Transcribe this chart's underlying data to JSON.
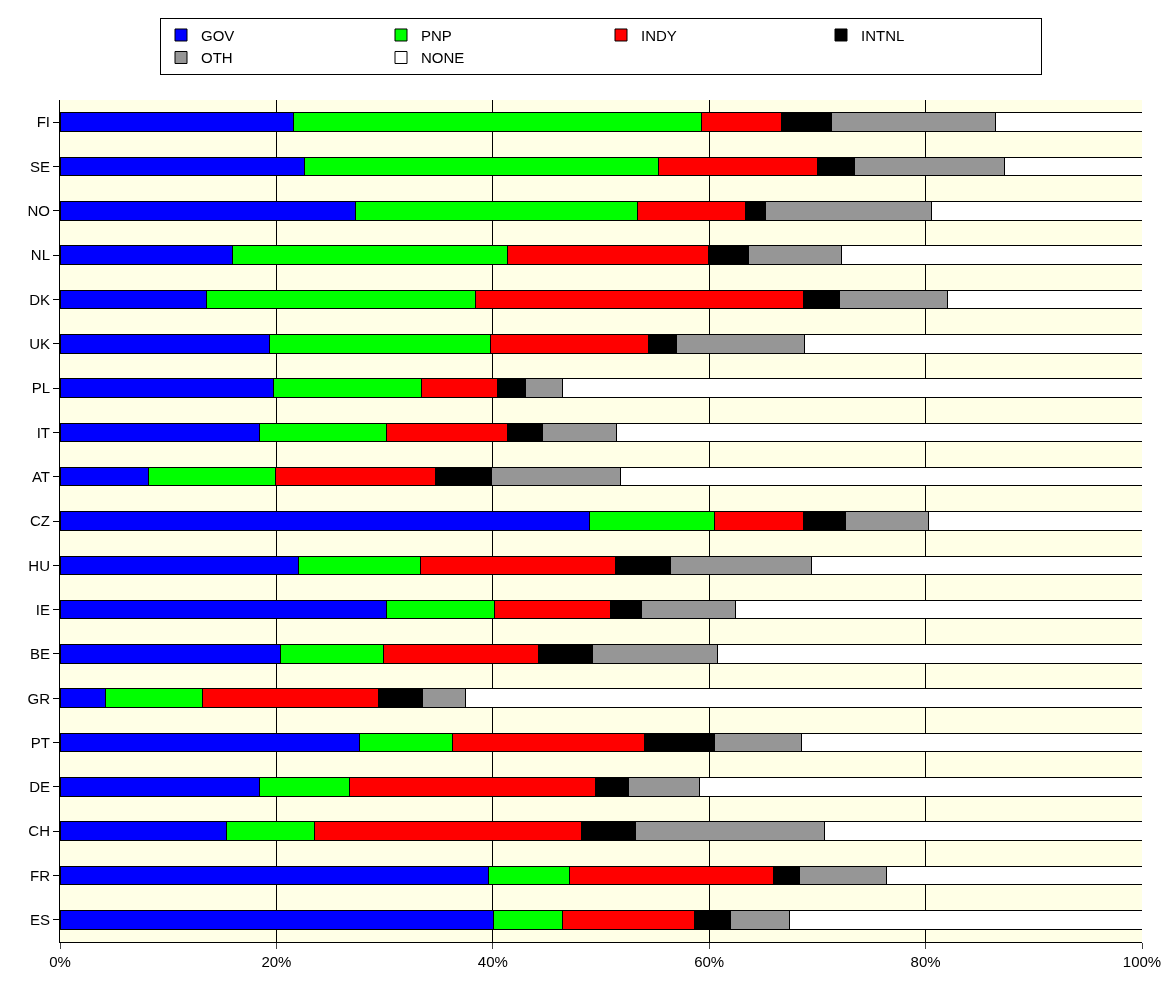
{
  "chart_data": {
    "type": "bar",
    "orientation": "horizontal",
    "stacked": true,
    "categories": [
      "FI",
      "SE",
      "NO",
      "NL",
      "DK",
      "UK",
      "PL",
      "IT",
      "AT",
      "CZ",
      "HU",
      "IE",
      "BE",
      "GR",
      "PT",
      "DE",
      "CH",
      "FR",
      "ES"
    ],
    "series": [
      {
        "name": "GOV",
        "color": "#0000ff",
        "values": [
          21.6,
          22.6,
          27.3,
          15.9,
          13.5,
          19.4,
          19.7,
          18.4,
          8.2,
          48.9,
          22.0,
          30.2,
          20.4,
          4.2,
          27.7,
          18.4,
          15.4,
          39.6,
          40.1
        ]
      },
      {
        "name": "PNP",
        "color": "#00ff00",
        "values": [
          37.7,
          32.7,
          26.1,
          25.5,
          24.9,
          20.4,
          13.7,
          11.8,
          11.7,
          11.6,
          11.3,
          10.0,
          9.5,
          9.0,
          8.6,
          8.4,
          8.1,
          7.5,
          6.3
        ]
      },
      {
        "name": "INDY",
        "color": "#ff0000",
        "values": [
          7.4,
          14.7,
          10.0,
          18.5,
          30.3,
          14.6,
          7.0,
          11.2,
          14.8,
          8.2,
          18.0,
          10.7,
          14.3,
          16.2,
          17.7,
          22.7,
          24.7,
          18.8,
          12.2
        ]
      },
      {
        "name": "INTNL",
        "color": "#000000",
        "values": [
          4.6,
          3.4,
          1.8,
          3.7,
          3.3,
          2.6,
          2.6,
          3.2,
          5.2,
          3.9,
          5.1,
          2.8,
          5.0,
          4.1,
          6.5,
          3.0,
          5.0,
          2.4,
          3.4
        ]
      },
      {
        "name": "OTH",
        "color": "#969696",
        "values": [
          15.2,
          13.9,
          15.3,
          8.6,
          10.0,
          11.8,
          3.4,
          6.8,
          11.9,
          7.7,
          13.1,
          8.7,
          11.6,
          4.0,
          8.0,
          6.6,
          17.5,
          8.1,
          5.4
        ]
      },
      {
        "name": "NONE",
        "color": "#ffffff",
        "values": [
          13.5,
          12.7,
          19.5,
          27.8,
          18.0,
          31.2,
          53.6,
          48.6,
          48.2,
          19.7,
          30.5,
          37.6,
          39.2,
          62.5,
          31.5,
          40.9,
          29.3,
          23.6,
          32.6
        ]
      }
    ],
    "xlim": [
      0,
      100
    ],
    "xticks": [
      {
        "value": 0,
        "label": "0%"
      },
      {
        "value": 20,
        "label": "20%"
      },
      {
        "value": 40,
        "label": "40%"
      },
      {
        "value": 60,
        "label": "60%"
      },
      {
        "value": 80,
        "label": "80%"
      },
      {
        "value": 100,
        "label": "100%"
      }
    ],
    "grid": "x",
    "legend": "top"
  }
}
